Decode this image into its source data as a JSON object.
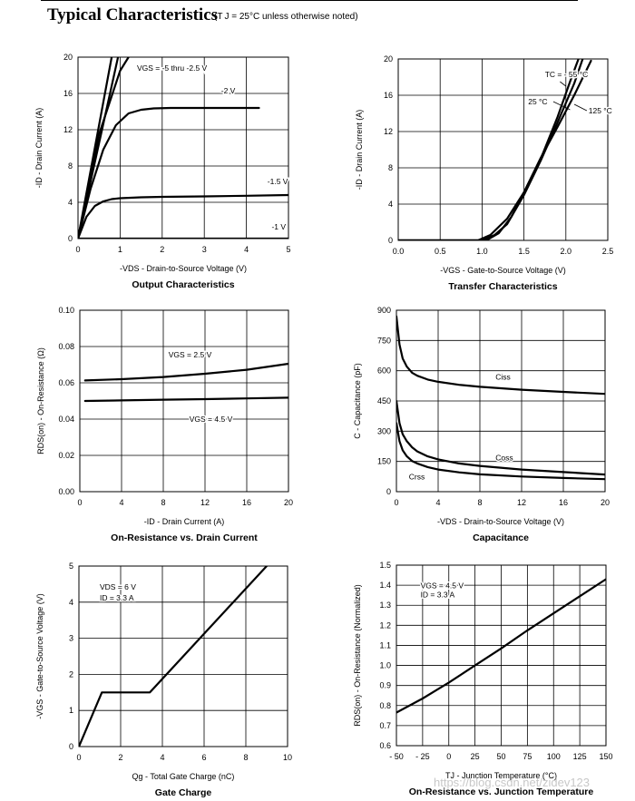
{
  "header": {
    "title": "Typical Characteristics",
    "subtitle": "(T J = 25°C unless otherwise noted)"
  },
  "watermark": "https://blog.csdn.net/zidev123",
  "chart_data": [
    {
      "id": "output",
      "type": "line",
      "title": "Output Characteristics",
      "xlabel": "-VDS - Drain-to-Source Voltage (V)",
      "ylabel": "-ID - Drain Current (A)",
      "xlim": [
        0,
        5
      ],
      "ylim": [
        0,
        20
      ],
      "xticks": [
        0,
        1,
        2,
        3,
        4,
        5
      ],
      "yticks": [
        0,
        4,
        8,
        12,
        16,
        20
      ],
      "grid": true,
      "series": [
        {
          "name": "VGS = -5 thru -2.5 V (a)",
          "x": [
            0,
            0.8
          ],
          "y": [
            0,
            20
          ]
        },
        {
          "name": "VGS = -5 thru -2.5 V (b)",
          "x": [
            0,
            0.95
          ],
          "y": [
            0,
            20
          ]
        },
        {
          "name": "VGS = -5 thru -2.5 V (c)",
          "x": [
            0,
            0.5,
            1.0,
            1.2
          ],
          "y": [
            0,
            11.5,
            18.5,
            20
          ]
        },
        {
          "name": "-2 V",
          "x": [
            0,
            0.3,
            0.6,
            0.9,
            1.2,
            1.5,
            1.8,
            2.2,
            3,
            4.3
          ],
          "y": [
            0,
            5.5,
            9.8,
            12.5,
            13.8,
            14.2,
            14.35,
            14.4,
            14.4,
            14.4
          ]
        },
        {
          "name": "-1.5 V",
          "x": [
            0,
            0.2,
            0.4,
            0.6,
            0.8,
            1.0,
            1.5,
            2,
            3,
            4,
            5
          ],
          "y": [
            0,
            2.4,
            3.6,
            4.1,
            4.35,
            4.45,
            4.55,
            4.6,
            4.65,
            4.72,
            4.8
          ]
        },
        {
          "name": "-1 V",
          "x": [
            0,
            5
          ],
          "y": [
            0,
            0
          ]
        }
      ],
      "annotations": [
        {
          "text": "VGS = -5 thru -2.5 V",
          "x": 1.4,
          "y": 18.5
        },
        {
          "text": "-2 V",
          "x": 3.4,
          "y": 16.0
        },
        {
          "text": "-1.5 V",
          "x": 4.5,
          "y": 6.0
        },
        {
          "text": "-1 V",
          "x": 4.6,
          "y": 1.0
        }
      ]
    },
    {
      "id": "transfer",
      "type": "line",
      "title": "Transfer Characteristics",
      "xlabel": "-VGS - Gate-to-Source Voltage (V)",
      "ylabel": "-ID - Drain Current (A)",
      "xlim": [
        0,
        2.5
      ],
      "ylim": [
        0,
        20
      ],
      "xticks": [
        0.0,
        0.5,
        1.0,
        1.5,
        2.0,
        2.5
      ],
      "xtick_labels": [
        "0.0",
        "0.5",
        "1.0",
        "1.5",
        "2.0",
        "2.5"
      ],
      "yticks": [
        0,
        4,
        8,
        12,
        16,
        20
      ],
      "grid": true,
      "series": [
        {
          "name": "TC = -55 °C",
          "x": [
            0,
            0.95,
            1.1,
            1.3,
            1.5,
            1.7,
            1.9,
            2.05,
            2.15
          ],
          "y": [
            0,
            0,
            0.6,
            2.4,
            5.3,
            9,
            13.6,
            17.5,
            20
          ]
        },
        {
          "name": "25 °C",
          "x": [
            0,
            1.0,
            1.15,
            1.3,
            1.5,
            1.7,
            1.9,
            2.1,
            2.2
          ],
          "y": [
            0,
            0,
            0.6,
            1.8,
            5.0,
            8.8,
            13.0,
            17.3,
            20
          ]
        },
        {
          "name": "125 °C",
          "x": [
            0,
            1.05,
            1.2,
            1.35,
            1.5,
            1.7,
            1.9,
            2.1,
            2.3
          ],
          "y": [
            0,
            0,
            0.8,
            2.6,
            5.3,
            9.1,
            12.5,
            16.0,
            19.8
          ]
        }
      ],
      "annotations": [
        {
          "text": "TC = - 55 °C",
          "x": 1.75,
          "y": 18.0
        },
        {
          "text": "25 °C",
          "x": 1.55,
          "y": 15.0
        },
        {
          "text": "125 °C",
          "x": 2.27,
          "y": 14.0
        }
      ]
    },
    {
      "id": "ron-id",
      "type": "line",
      "title": "On-Resistance vs. Drain Current",
      "xlabel": "-ID - Drain Current (A)",
      "ylabel": "RDS(on) - On-Resistance (Ω)",
      "xlim": [
        0,
        20
      ],
      "ylim": [
        0,
        0.1
      ],
      "xticks": [
        0,
        4,
        8,
        12,
        16,
        20
      ],
      "yticks": [
        0,
        0.02,
        0.04,
        0.06,
        0.08,
        0.1
      ],
      "ytick_labels": [
        "0.00",
        "0.02",
        "0.04",
        "0.06",
        "0.08",
        "0.10"
      ],
      "grid": true,
      "series": [
        {
          "name": "VGS = 2.5 V",
          "x": [
            0.5,
            4,
            8,
            12,
            16,
            20
          ],
          "y": [
            0.0613,
            0.062,
            0.0632,
            0.065,
            0.0672,
            0.0705
          ]
        },
        {
          "name": "VGS = 4.5 V",
          "x": [
            0.5,
            4,
            8,
            12,
            16,
            20
          ],
          "y": [
            0.05,
            0.0503,
            0.0507,
            0.051,
            0.0514,
            0.0518
          ]
        }
      ],
      "annotations": [
        {
          "text": "VGS = 2.5 V",
          "x": 8.5,
          "y": 0.074
        },
        {
          "text": "VGS = 4.5 V",
          "x": 10.5,
          "y": 0.0385
        }
      ]
    },
    {
      "id": "capacitance",
      "type": "line",
      "title": "Capacitance",
      "xlabel": "-VDS - Drain-to-Source Voltage (V)",
      "ylabel": "C - Capacitance (pF)",
      "xlim": [
        0,
        20
      ],
      "ylim": [
        0,
        900
      ],
      "xticks": [
        0,
        4,
        8,
        12,
        16,
        20
      ],
      "yticks": [
        0,
        150,
        300,
        450,
        600,
        750,
        900
      ],
      "grid": true,
      "series": [
        {
          "name": "Ciss",
          "x": [
            0,
            0.3,
            0.6,
            1,
            1.5,
            2,
            3,
            4,
            6,
            8,
            12,
            16,
            20
          ],
          "y": [
            870,
            730,
            660,
            620,
            590,
            575,
            556,
            545,
            530,
            520,
            506,
            495,
            485
          ]
        },
        {
          "name": "Coss",
          "x": [
            0,
            0.3,
            0.6,
            1,
            1.5,
            2,
            3,
            4,
            6,
            8,
            12,
            16,
            20
          ],
          "y": [
            450,
            340,
            285,
            250,
            220,
            200,
            175,
            160,
            140,
            128,
            110,
            97,
            85
          ]
        },
        {
          "name": "Crss",
          "x": [
            0,
            0.3,
            0.6,
            1,
            1.5,
            2,
            3,
            4,
            6,
            8,
            12,
            16,
            20
          ],
          "y": [
            340,
            250,
            205,
            175,
            152,
            140,
            122,
            110,
            96,
            86,
            75,
            68,
            62
          ]
        }
      ],
      "annotations": [
        {
          "text": "Ciss",
          "x": 9.5,
          "y": 555
        },
        {
          "text": "Coss",
          "x": 9.5,
          "y": 155
        },
        {
          "text": "Crss",
          "x": 1.2,
          "y": 60
        }
      ]
    },
    {
      "id": "gate-charge",
      "type": "line",
      "title": "Gate Charge",
      "xlabel": "Qg - Total Gate Charge (nC)",
      "ylabel": "-VGS - Gate-to-Source Voltage (V)",
      "xlim": [
        0,
        10
      ],
      "ylim": [
        0,
        5
      ],
      "xticks": [
        0,
        2,
        4,
        6,
        8,
        10
      ],
      "yticks": [
        0,
        1,
        2,
        3,
        4,
        5
      ],
      "grid": true,
      "series": [
        {
          "name": "VGS",
          "x": [
            0,
            1.1,
            3.4,
            9.0
          ],
          "y": [
            0,
            1.5,
            1.5,
            5.0
          ]
        }
      ],
      "annotations": [
        {
          "text": "VDS = 6 V",
          "x": 1.0,
          "y": 4.35
        },
        {
          "text": "ID = 3.3 A",
          "x": 1.0,
          "y": 4.05
        }
      ]
    },
    {
      "id": "ron-tj",
      "type": "line",
      "title": "On-Resistance vs. Junction Temperature",
      "xlabel": "TJ - Junction Temperature (°C)",
      "ylabel": "RDS(on) - On-Resistance (Normalized)",
      "xlim": [
        -50,
        150
      ],
      "ylim": [
        0.6,
        1.5
      ],
      "xticks": [
        -50,
        -25,
        0,
        25,
        50,
        75,
        100,
        125,
        150
      ],
      "xtick_labels": [
        "- 50",
        "- 25",
        "0",
        "25",
        "50",
        "75",
        "100",
        "125",
        "150"
      ],
      "yticks": [
        0.6,
        0.7,
        0.8,
        0.9,
        1.0,
        1.1,
        1.2,
        1.3,
        1.4,
        1.5
      ],
      "ytick_labels": [
        "0.6",
        "0.7",
        "0.8",
        "0.9",
        "1.0",
        "1.1",
        "1.2",
        "1.3",
        "1.4",
        "1.5"
      ],
      "grid": true,
      "series": [
        {
          "name": "RDS(on) normalized",
          "x": [
            -50,
            -25,
            0,
            25,
            50,
            75,
            100,
            125,
            150
          ],
          "y": [
            0.765,
            0.835,
            0.915,
            1.0,
            1.085,
            1.175,
            1.26,
            1.345,
            1.43
          ]
        }
      ],
      "annotations": [
        {
          "text": "VGS = 4.5 V",
          "x": -27,
          "y": 1.385
        },
        {
          "text": "ID = 3.3 A",
          "x": -27,
          "y": 1.34
        }
      ]
    }
  ]
}
